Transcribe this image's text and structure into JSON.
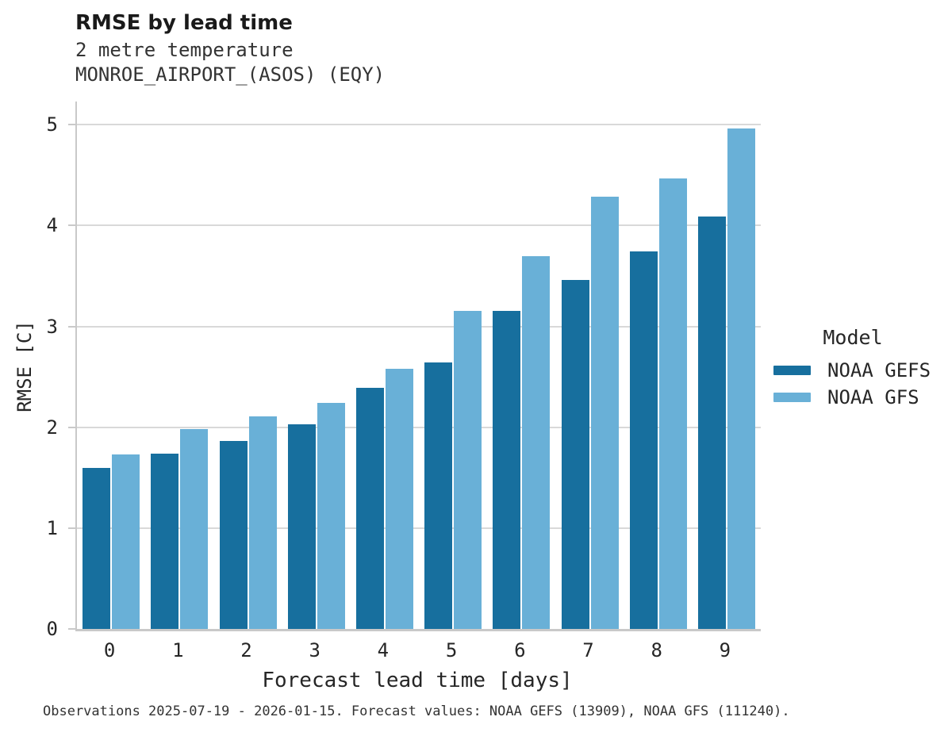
{
  "header": {
    "title": "RMSE by lead time",
    "subtitle": "2 metre temperature",
    "station": "MONROE_AIRPORT_(ASOS) (EQY)"
  },
  "chart_data": {
    "type": "bar",
    "categories": [
      "0",
      "1",
      "2",
      "3",
      "4",
      "5",
      "6",
      "7",
      "8",
      "9"
    ],
    "series": [
      {
        "name": "NOAA GEFS",
        "color": "#176F9E",
        "values": [
          1.6,
          1.74,
          1.86,
          2.03,
          2.39,
          2.64,
          3.15,
          3.46,
          3.74,
          4.09
        ]
      },
      {
        "name": "NOAA GFS",
        "color": "#69B0D7",
        "values": [
          1.73,
          1.98,
          2.11,
          2.24,
          2.58,
          3.15,
          3.7,
          4.29,
          4.47,
          4.96
        ]
      }
    ],
    "title": "RMSE by lead time",
    "xlabel": "Forecast lead time [days]",
    "ylabel": "RMSE [C]",
    "ylim": [
      0,
      5.23
    ],
    "yticks": [
      0,
      1,
      2,
      3,
      4,
      5
    ],
    "grid": true,
    "legend_title": "Model",
    "legend_position": "right"
  },
  "colors": {
    "grid": "#d9d9d9",
    "spine": "#c9c9c9",
    "text": "#262626"
  },
  "footnote": "Observations 2025-07-19 - 2026-01-15. Forecast values: NOAA GEFS (13909), NOAA GFS (111240)."
}
